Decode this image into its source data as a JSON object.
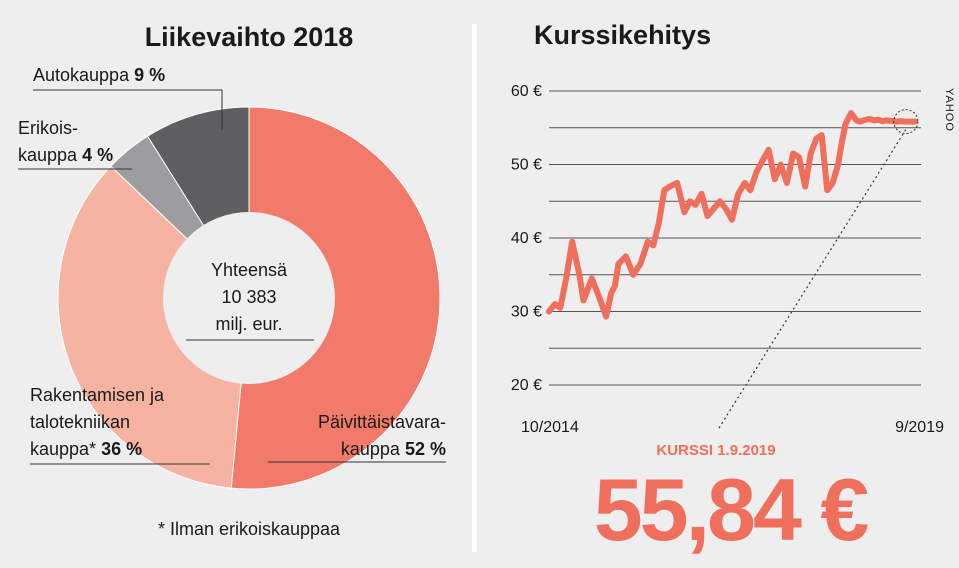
{
  "colors": {
    "paivittaistavara": "#f27a6b",
    "rakentaminen": "#f7b3a1",
    "erikois": "#9d9d9f",
    "auto": "#5f5f61",
    "line": "#ef6f5c",
    "divider": "#ffffff"
  },
  "chart_data": [
    {
      "type": "pie",
      "title": "Liikevaihto 2018",
      "center_text": [
        "Yhteensä",
        "10 383",
        "milj. eur."
      ],
      "slices": [
        {
          "id": "paivittaistavara",
          "label_lines": [
            "Päivittäistavara-",
            "kauppa"
          ],
          "pct_text": "52 %",
          "value": 52
        },
        {
          "id": "rakentaminen",
          "label_lines": [
            "Rakentamisen ja",
            "talotekniikan",
            "kauppa*"
          ],
          "pct_text": "36 %",
          "value": 36
        },
        {
          "id": "erikois",
          "label_lines": [
            "Erikois-",
            "kauppa"
          ],
          "pct_text": "4 %",
          "value": 4
        },
        {
          "id": "auto",
          "label_lines": [
            "Autokauppa"
          ],
          "pct_text": "9 %",
          "value": 9
        }
      ],
      "footnote": "* Ilman erikoiskauppaa"
    },
    {
      "type": "line",
      "title": "Kurssikehitys",
      "x_start_label": "10/2014",
      "x_end_label": "9/2019",
      "ylim": [
        20,
        60
      ],
      "y_ticks": [
        20,
        30,
        40,
        50,
        60
      ],
      "y_tick_labels": [
        "20 €",
        "30 €",
        "40 €",
        "50 €",
        "60 €"
      ],
      "source": "YAHOO",
      "series": [
        {
          "x": [
            0,
            0.016,
            0.031,
            0.047,
            0.063,
            0.083,
            0.094,
            0.117,
            0.137,
            0.156,
            0.17,
            0.18,
            0.19,
            0.21,
            0.23,
            0.25,
            0.27,
            0.285,
            0.3,
            0.315,
            0.33,
            0.35,
            0.37,
            0.385,
            0.4,
            0.417,
            0.433,
            0.45,
            0.467,
            0.483,
            0.5,
            0.517,
            0.535,
            0.55,
            0.567,
            0.583,
            0.6,
            0.617,
            0.633,
            0.65,
            0.667,
            0.683,
            0.7,
            0.715,
            0.73,
            0.745,
            0.76,
            0.775,
            0.79,
            0.8,
            0.81,
            0.825,
            0.84,
            0.85,
            0.86,
            0.875,
            0.888,
            0.9,
            0.91,
            0.925,
            0.94,
            0.95,
            0.96,
            0.975,
            0.985,
            1.0
          ],
          "y": [
            30.0,
            31.0,
            30.5,
            34.5,
            39.5,
            35.0,
            31.5,
            34.5,
            32.0,
            29.3,
            32.5,
            33.5,
            36.5,
            37.5,
            35.0,
            36.5,
            39.5,
            39.0,
            42.0,
            46.5,
            47.0,
            47.5,
            43.5,
            45.0,
            44.5,
            46.0,
            43.0,
            44.0,
            45.0,
            44.0,
            42.5,
            46.0,
            47.5,
            46.5,
            49.0,
            50.5,
            52.0,
            48.0,
            50.0,
            47.5,
            51.5,
            51.0,
            47.0,
            51.5,
            53.5,
            54.0,
            46.5,
            47.5,
            50.0,
            53.0,
            55.5,
            57.0,
            56.0,
            55.84,
            56.0,
            56.2,
            56.0,
            56.1,
            55.9,
            56.0,
            55.9,
            55.84,
            55.9,
            55.84,
            55.84,
            55.84
          ]
        }
      ],
      "highlight": {
        "label": "KURSSI 1.9.2019",
        "value_text": "55,84 €",
        "value": 55.84
      }
    }
  ]
}
